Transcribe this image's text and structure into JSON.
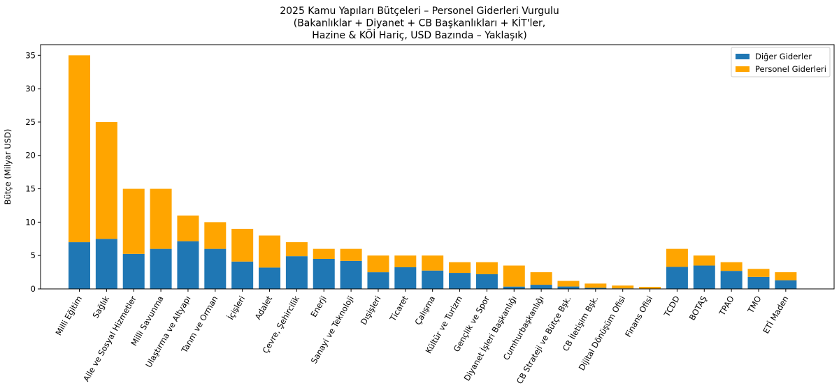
{
  "chart_data": {
    "type": "bar",
    "stacked": true,
    "title": [
      "2025 Kamu Yapıları Bütçeleri – Personel Giderleri Vurgulu",
      "(Bakanlıklar + Diyanet + CB Başkanlıkları + KİT'ler,",
      "Hazine & KÖİ Hariç, USD Bazında – Yaklaşık)"
    ],
    "xlabel": "",
    "ylabel": "Bütçe (Milyar USD)",
    "ylim": [
      0,
      36.6
    ],
    "yticks": [
      0,
      5,
      10,
      15,
      20,
      25,
      30,
      35
    ],
    "grid": false,
    "legend_position": "top-right",
    "categories": [
      "Milli Eğitim",
      "Sağlık",
      "Aile ve Sosyal Hizmetler",
      "Milli Savunma",
      "Ulaştırma ve Altyapı",
      "Tarım ve Orman",
      "İçişleri",
      "Adalet",
      "Çevre, Şehircilik",
      "Enerji",
      "Sanayi ve Teknoloji",
      "Dışişleri",
      "Ticaret",
      "Çalışma",
      "Kültür ve Turizm",
      "Gençlik ve Spor",
      "Diyanet İşleri Başkanlığı",
      "Cumhurbaşkanlığı",
      "CB Strateji ve Bütçe Bşk.",
      "CB İletişim Bşk.",
      "Dijital Dönüşüm Ofisi",
      "Finans Ofisi",
      "TCDD",
      "BOTAŞ",
      "TPAO",
      "TMO",
      "ETİ Maden"
    ],
    "series": [
      {
        "name": "Diğer Giderler",
        "color": "#1f77b4",
        "values": [
          7.0,
          7.5,
          5.25,
          6.0,
          7.15,
          6.0,
          4.1,
          3.2,
          4.9,
          4.5,
          4.2,
          2.5,
          3.25,
          2.75,
          2.4,
          2.2,
          0.35,
          0.62,
          0.36,
          0.16,
          0.08,
          0.04,
          3.3,
          3.5,
          2.7,
          1.8,
          1.3
        ]
      },
      {
        "name": "Personel Giderleri",
        "color": "#ffa500",
        "values": [
          28.0,
          17.5,
          9.75,
          9.0,
          3.85,
          4.0,
          4.9,
          4.8,
          2.1,
          1.5,
          1.8,
          2.5,
          1.75,
          2.25,
          1.6,
          1.8,
          3.15,
          1.88,
          0.84,
          0.64,
          0.42,
          0.26,
          2.7,
          1.5,
          1.3,
          1.2,
          1.2
        ]
      }
    ]
  }
}
